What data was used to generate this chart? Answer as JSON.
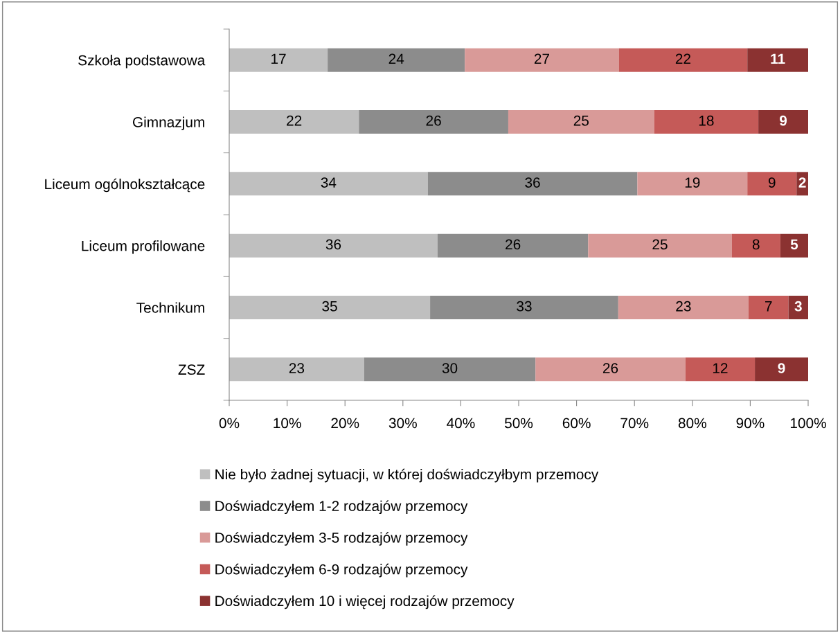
{
  "chart_data": {
    "type": "bar",
    "orientation": "horizontal",
    "stacked": true,
    "categories": [
      "Szkoła podstawowa",
      "Gimnazjum",
      "Liceum ogólnokształcące",
      "Liceum profilowane",
      "Technikum",
      "ZSZ"
    ],
    "series": [
      {
        "name": "Nie było żadnej sytuacji, w której doświadczyłbym przemocy",
        "color": "#bfbfbf",
        "values": [
          17.0,
          22.4,
          34.3,
          36.0,
          34.7,
          23.3
        ],
        "value_labels": [
          "17",
          "22",
          "34",
          "36",
          "35",
          "23"
        ]
      },
      {
        "name": "Doświadczyłem 1-2 rodzajów przemocy",
        "color": "#8c8c8c",
        "values": [
          23.7,
          25.8,
          36.2,
          26.0,
          32.5,
          29.6
        ],
        "value_labels": [
          "24",
          "26",
          "36",
          "26",
          "33",
          "30"
        ]
      },
      {
        "name": "Doświadczyłem 3-5 rodzajów przemocy",
        "color": "#d99a98",
        "values": [
          26.6,
          25.2,
          19.0,
          24.8,
          22.5,
          25.9
        ],
        "value_labels": [
          "27",
          "25",
          "19",
          "25",
          "23",
          "26"
        ]
      },
      {
        "name": "Doświadczyłem 6-9 rodzajów przemocy",
        "color": "#c55a58",
        "values": [
          22.2,
          18.0,
          8.5,
          8.4,
          6.9,
          12.0
        ],
        "value_labels": [
          "22",
          "18",
          "9",
          "8",
          "7",
          "12"
        ]
      },
      {
        "name": "Doświadczyłem 10 i więcej rodzajów przemocy",
        "color": "#8b3231",
        "values": [
          10.5,
          8.6,
          2.0,
          4.8,
          3.4,
          9.2
        ],
        "value_labels": [
          "11",
          "9",
          "2",
          "5",
          "3",
          "9"
        ]
      }
    ],
    "xlim": [
      0,
      100
    ],
    "xticks": [
      {
        "value": 0,
        "label": "0%"
      },
      {
        "value": 10,
        "label": "10%"
      },
      {
        "value": 20,
        "label": "20%"
      },
      {
        "value": 30,
        "label": "30%"
      },
      {
        "value": 40,
        "label": "40%"
      },
      {
        "value": 50,
        "label": "50%"
      },
      {
        "value": 60,
        "label": "60%"
      },
      {
        "value": 70,
        "label": "70%"
      },
      {
        "value": 80,
        "label": "80%"
      },
      {
        "value": 90,
        "label": "90%"
      },
      {
        "value": 100,
        "label": "100%"
      }
    ],
    "grid": false,
    "legend": "bottom"
  }
}
